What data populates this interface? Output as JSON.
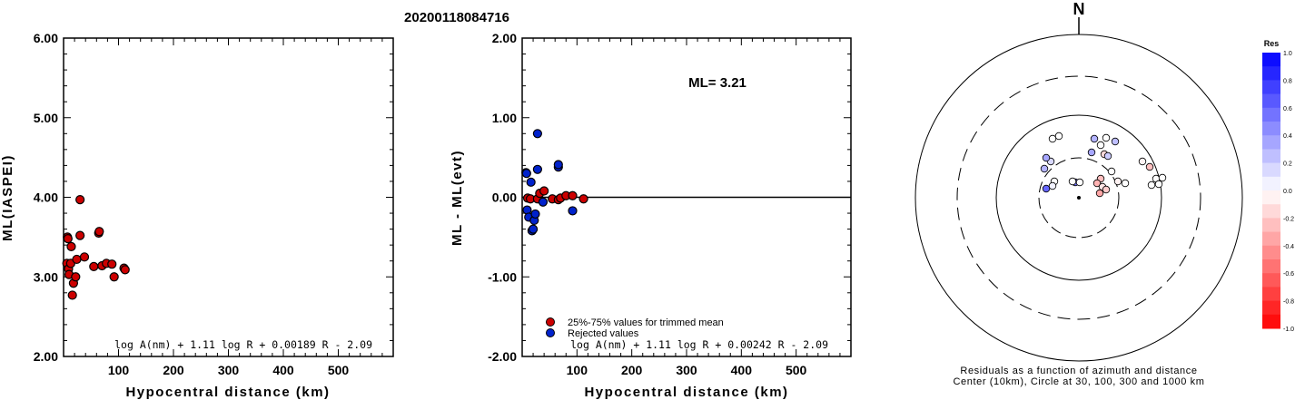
{
  "event_id": "20200118084716",
  "chart_data": [
    {
      "type": "scatter",
      "xlabel": "Hypocentral distance (km)",
      "ylabel": "ML(IASPEI)",
      "xlim": [
        0,
        600
      ],
      "ylim": [
        2.0,
        6.0
      ],
      "xticks": [
        "100",
        "200",
        "300",
        "400",
        "500"
      ],
      "yticks": [
        "2.00",
        "3.00",
        "4.00",
        "5.00",
        "6.00"
      ],
      "formula": "log A(nm) + 1.11 log R + 0.00189 R - 2.09",
      "series": [
        {
          "color": "#cc0000",
          "points": [
            [
              7,
              3.5
            ],
            [
              8,
              3.48
            ],
            [
              6,
              3.17
            ],
            [
              9,
              3.1
            ],
            [
              10,
              3.03
            ],
            [
              13,
              3.17
            ],
            [
              14,
              3.38
            ],
            [
              16,
              2.77
            ],
            [
              18,
              2.92
            ],
            [
              22,
              3.0
            ],
            [
              24,
              3.22
            ],
            [
              30,
              3.52
            ],
            [
              30,
              3.97
            ],
            [
              38,
              3.25
            ],
            [
              55,
              3.13
            ],
            [
              64,
              3.55
            ],
            [
              65,
              3.57
            ],
            [
              70,
              3.14
            ],
            [
              78,
              3.17
            ],
            [
              88,
              3.16
            ],
            [
              92,
              3.0
            ],
            [
              110,
              3.11
            ],
            [
              112,
              3.09
            ]
          ]
        }
      ]
    },
    {
      "type": "scatter",
      "xlabel": "Hypocentral distance (km)",
      "ylabel": "ML - ML(evt)",
      "xlim": [
        0,
        600
      ],
      "ylim": [
        -2.0,
        2.0
      ],
      "xticks": [
        "100",
        "200",
        "300",
        "400",
        "500"
      ],
      "yticks": [
        "-2.00",
        "-1.00",
        "0.00",
        "1.00",
        "2.00"
      ],
      "annotation": "ML= 3.21",
      "reference_line": 0.0,
      "formula": "log A(nm) + 1.11 log R + 0.00242 R - 2.09",
      "legend": [
        "25%-75% values for trimmed mean",
        "Rejected values"
      ],
      "legend_colors": [
        "#cc0000",
        "#0022cc"
      ],
      "series": [
        {
          "name": "25%-75% values for trimmed mean",
          "color": "#cc0000",
          "points": [
            [
              10,
              -0.01
            ],
            [
              15,
              -0.02
            ],
            [
              28,
              -0.02
            ],
            [
              32,
              0.05
            ],
            [
              40,
              0.08
            ],
            [
              55,
              -0.02
            ],
            [
              66,
              -0.03
            ],
            [
              70,
              -0.01
            ],
            [
              80,
              0.02
            ],
            [
              92,
              0.02
            ],
            [
              112,
              -0.02
            ]
          ]
        },
        {
          "name": "Rejected values",
          "color": "#0022cc",
          "points": [
            [
              7,
              0.31
            ],
            [
              8,
              0.3
            ],
            [
              9,
              -0.16
            ],
            [
              12,
              -0.25
            ],
            [
              16,
              0.19
            ],
            [
              18,
              -0.42
            ],
            [
              20,
              -0.4
            ],
            [
              22,
              -0.29
            ],
            [
              24,
              -0.21
            ],
            [
              28,
              0.35
            ],
            [
              28,
              0.8
            ],
            [
              38,
              -0.06
            ],
            [
              66,
              0.38
            ],
            [
              66,
              0.41
            ],
            [
              92,
              -0.17
            ]
          ]
        }
      ]
    },
    {
      "type": "scatter",
      "subtype": "polar-residuals",
      "north_label": "N",
      "caption_line1": "Residuals as a function of azimuth and distance",
      "caption_line2": "Center (10km), Circle at 30, 100, 300 and 1000 km",
      "colorbar_title": "Res",
      "colorbar_ticks": [
        "1.0",
        "0.8",
        "0.6",
        "0.4",
        "0.2",
        "0.0",
        "-0.2",
        "-0.4",
        "-0.6",
        "-0.8",
        "-1.0"
      ],
      "rings_km": [
        30,
        100,
        300,
        1000
      ],
      "points": [
        {
          "res": 0.0
        },
        {
          "res": 0.0
        },
        {
          "res": 0.15
        },
        {
          "res": 0.35
        },
        {
          "res": 0.3
        },
        {
          "res": 0.0
        },
        {
          "res": 0.05
        },
        {
          "res": 0.6
        },
        {
          "res": 0.55
        },
        {
          "res": 0.0
        },
        {
          "res": 0.0
        },
        {
          "res": 0.35
        },
        {
          "res": 0.0
        },
        {
          "res": -0.15
        },
        {
          "res": 0.3
        },
        {
          "res": 0.0
        },
        {
          "res": 0.25
        },
        {
          "res": 0.2
        },
        {
          "res": 0.0
        },
        {
          "res": -0.25
        },
        {
          "res": -0.3
        },
        {
          "res": -0.1
        },
        {
          "res": -0.2
        },
        {
          "res": -0.35
        },
        {
          "res": -0.05
        },
        {
          "res": 0.0
        },
        {
          "res": -0.05
        },
        {
          "res": -0.25
        },
        {
          "res": 0.0
        },
        {
          "res": 0.0
        },
        {
          "res": 0.0
        },
        {
          "res": 0.0
        }
      ]
    }
  ]
}
